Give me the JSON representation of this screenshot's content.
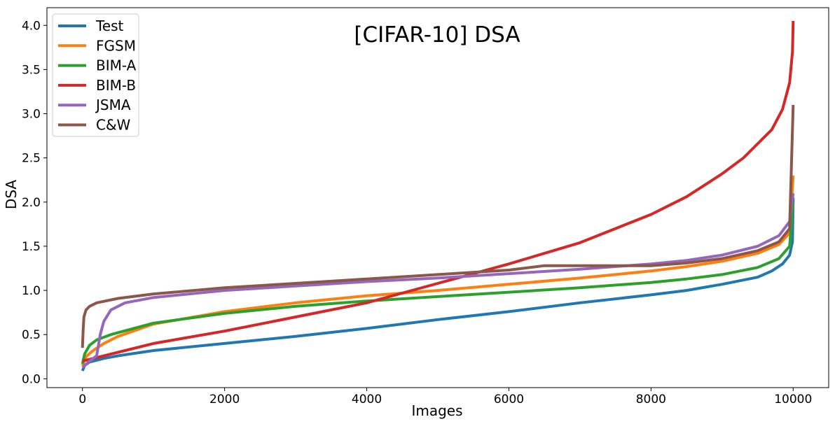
{
  "chart_data": {
    "type": "line",
    "title": "[CIFAR-10] DSA",
    "xlabel": "Images",
    "ylabel": "DSA",
    "xlim": [
      -500,
      10500
    ],
    "ylim": [
      -0.1,
      4.2
    ],
    "xticks": [
      0,
      2000,
      4000,
      6000,
      8000,
      10000
    ],
    "xtick_labels": [
      "0",
      "2000",
      "4000",
      "6000",
      "8000",
      "10000"
    ],
    "yticks": [
      0.0,
      0.5,
      1.0,
      1.5,
      2.0,
      2.5,
      3.0,
      3.5,
      4.0
    ],
    "ytick_labels": [
      "0.0",
      "0.5",
      "1.0",
      "1.5",
      "2.0",
      "2.5",
      "3.0",
      "3.5",
      "4.0"
    ],
    "grid": false,
    "legend_position": "top-left",
    "series": [
      {
        "name": "Test",
        "color": "#1f77b4",
        "points": [
          [
            0,
            0.09
          ],
          [
            30,
            0.15
          ],
          [
            100,
            0.19
          ],
          [
            300,
            0.23
          ],
          [
            500,
            0.26
          ],
          [
            1000,
            0.32
          ],
          [
            2000,
            0.4
          ],
          [
            3000,
            0.48
          ],
          [
            4000,
            0.57
          ],
          [
            5000,
            0.67
          ],
          [
            6000,
            0.76
          ],
          [
            7000,
            0.86
          ],
          [
            8000,
            0.95
          ],
          [
            8500,
            1.0
          ],
          [
            9000,
            1.07
          ],
          [
            9500,
            1.15
          ],
          [
            9700,
            1.22
          ],
          [
            9850,
            1.3
          ],
          [
            9950,
            1.4
          ],
          [
            9990,
            1.55
          ],
          [
            10000,
            2.05
          ]
        ]
      },
      {
        "name": "FGSM",
        "color": "#ff7f0e",
        "points": [
          [
            0,
            0.15
          ],
          [
            50,
            0.25
          ],
          [
            150,
            0.32
          ],
          [
            300,
            0.4
          ],
          [
            500,
            0.48
          ],
          [
            1000,
            0.62
          ],
          [
            2000,
            0.76
          ],
          [
            3000,
            0.86
          ],
          [
            4000,
            0.94
          ],
          [
            5000,
            1.0
          ],
          [
            6000,
            1.07
          ],
          [
            7000,
            1.14
          ],
          [
            8000,
            1.22
          ],
          [
            8500,
            1.27
          ],
          [
            9000,
            1.33
          ],
          [
            9500,
            1.42
          ],
          [
            9800,
            1.52
          ],
          [
            9950,
            1.65
          ],
          [
            10000,
            2.3
          ]
        ]
      },
      {
        "name": "BIM-A",
        "color": "#2ca02c",
        "points": [
          [
            0,
            0.17
          ],
          [
            30,
            0.28
          ],
          [
            100,
            0.38
          ],
          [
            200,
            0.44
          ],
          [
            400,
            0.5
          ],
          [
            1000,
            0.63
          ],
          [
            2000,
            0.74
          ],
          [
            3000,
            0.82
          ],
          [
            4000,
            0.88
          ],
          [
            5000,
            0.93
          ],
          [
            6000,
            0.98
          ],
          [
            7000,
            1.03
          ],
          [
            8000,
            1.09
          ],
          [
            8500,
            1.13
          ],
          [
            9000,
            1.18
          ],
          [
            9500,
            1.26
          ],
          [
            9800,
            1.36
          ],
          [
            9950,
            1.5
          ],
          [
            10000,
            2.0
          ]
        ]
      },
      {
        "name": "BIM-B",
        "color": "#d62728",
        "points": [
          [
            0,
            0.2
          ],
          [
            500,
            0.3
          ],
          [
            1000,
            0.4
          ],
          [
            2000,
            0.54
          ],
          [
            3000,
            0.7
          ],
          [
            4000,
            0.86
          ],
          [
            5000,
            1.08
          ],
          [
            6000,
            1.3
          ],
          [
            7000,
            1.54
          ],
          [
            8000,
            1.86
          ],
          [
            8500,
            2.06
          ],
          [
            9000,
            2.32
          ],
          [
            9300,
            2.5
          ],
          [
            9500,
            2.66
          ],
          [
            9700,
            2.82
          ],
          [
            9850,
            3.05
          ],
          [
            9950,
            3.35
          ],
          [
            9990,
            3.7
          ],
          [
            10000,
            4.05
          ]
        ]
      },
      {
        "name": "JSMA",
        "color": "#9467bd",
        "points": [
          [
            0,
            0.13
          ],
          [
            100,
            0.2
          ],
          [
            200,
            0.26
          ],
          [
            250,
            0.5
          ],
          [
            300,
            0.65
          ],
          [
            400,
            0.78
          ],
          [
            600,
            0.86
          ],
          [
            1000,
            0.92
          ],
          [
            2000,
            1.0
          ],
          [
            3000,
            1.05
          ],
          [
            4000,
            1.1
          ],
          [
            5000,
            1.14
          ],
          [
            6000,
            1.19
          ],
          [
            7000,
            1.24
          ],
          [
            8000,
            1.3
          ],
          [
            8500,
            1.34
          ],
          [
            9000,
            1.4
          ],
          [
            9500,
            1.5
          ],
          [
            9800,
            1.62
          ],
          [
            9950,
            1.78
          ],
          [
            10000,
            2.1
          ]
        ]
      },
      {
        "name": "C&W",
        "color": "#8c564b",
        "points": [
          [
            0,
            0.35
          ],
          [
            10,
            0.55
          ],
          [
            20,
            0.7
          ],
          [
            50,
            0.78
          ],
          [
            100,
            0.82
          ],
          [
            200,
            0.86
          ],
          [
            500,
            0.91
          ],
          [
            1000,
            0.96
          ],
          [
            2000,
            1.03
          ],
          [
            3000,
            1.08
          ],
          [
            4000,
            1.13
          ],
          [
            5000,
            1.18
          ],
          [
            6000,
            1.23
          ],
          [
            6500,
            1.28
          ],
          [
            7000,
            1.28
          ],
          [
            8000,
            1.28
          ],
          [
            8500,
            1.31
          ],
          [
            9000,
            1.36
          ],
          [
            9500,
            1.45
          ],
          [
            9800,
            1.55
          ],
          [
            9950,
            1.7
          ],
          [
            10000,
            3.1
          ]
        ]
      }
    ]
  }
}
